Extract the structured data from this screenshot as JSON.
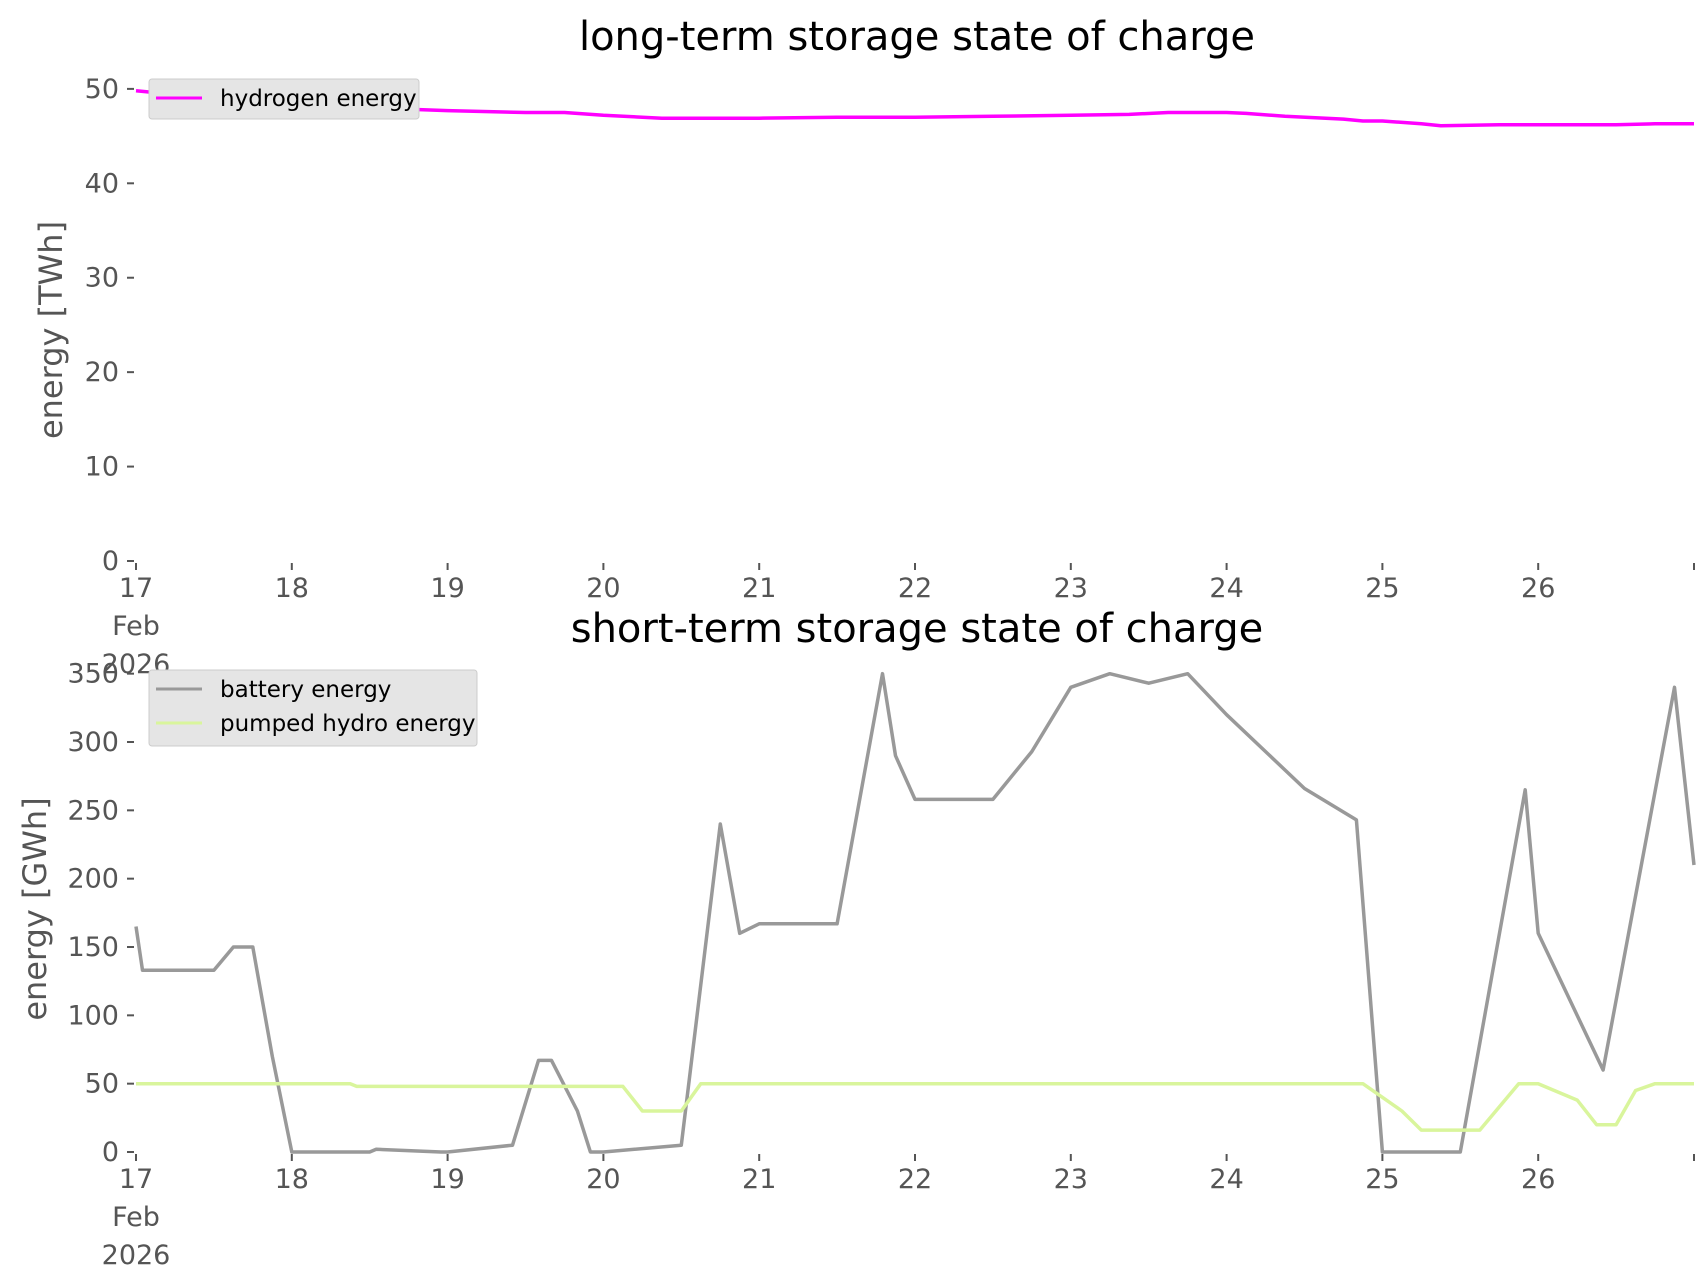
{
  "chart_data": [
    {
      "type": "line",
      "title": "long-term storage state of charge",
      "xlabel": "",
      "ylabel": "energy [TWh]",
      "x_range": [
        "2026-02-17",
        "2026-02-27"
      ],
      "xtick_labels": [
        {
          "day": "17",
          "sub1": "Feb",
          "sub2": "2026"
        },
        {
          "day": "18"
        },
        {
          "day": "19"
        },
        {
          "day": "20"
        },
        {
          "day": "21"
        },
        {
          "day": "22"
        },
        {
          "day": "23"
        },
        {
          "day": "24"
        },
        {
          "day": "25"
        },
        {
          "day": "26"
        }
      ],
      "ylim": [
        0,
        52
      ],
      "yticks": [
        0,
        10,
        20,
        30,
        40,
        50
      ],
      "grid": false,
      "legend_position": "top-left",
      "series": [
        {
          "name": "hydrogen energy",
          "color": "#ff00ff",
          "x": [
            "2026-02-17T00:00",
            "2026-02-17T12:00",
            "2026-02-18T00:00",
            "2026-02-18T12:00",
            "2026-02-19T00:00",
            "2026-02-19T12:00",
            "2026-02-19T18:00",
            "2026-02-20T00:00",
            "2026-02-20T09:00",
            "2026-02-20T12:00",
            "2026-02-21T00:00",
            "2026-02-21T12:00",
            "2026-02-22T00:00",
            "2026-02-22T12:00",
            "2026-02-23T00:00",
            "2026-02-23T09:00",
            "2026-02-23T15:00",
            "2026-02-24T00:00",
            "2026-02-24T03:00",
            "2026-02-24T09:00",
            "2026-02-24T18:00",
            "2026-02-24T21:00",
            "2026-02-25T00:00",
            "2026-02-25T06:00",
            "2026-02-25T09:00",
            "2026-02-25T18:00",
            "2026-02-26T00:00",
            "2026-02-26T12:00",
            "2026-02-26T18:00",
            "2026-02-27T00:00"
          ],
          "y": [
            49.8,
            49.0,
            48.3,
            48.0,
            47.7,
            47.5,
            47.5,
            47.2,
            46.9,
            46.9,
            46.9,
            47.0,
            47.0,
            47.1,
            47.2,
            47.3,
            47.5,
            47.5,
            47.4,
            47.1,
            46.8,
            46.6,
            46.6,
            46.3,
            46.1,
            46.2,
            46.2,
            46.2,
            46.3,
            46.3
          ]
        }
      ]
    },
    {
      "type": "line",
      "title": "short-term storage state of charge",
      "xlabel": "",
      "ylabel": "energy [GWh]",
      "x_range": [
        "2026-02-17",
        "2026-02-27"
      ],
      "xtick_labels": [
        {
          "day": "17",
          "sub1": "Feb",
          "sub2": "2026"
        },
        {
          "day": "18"
        },
        {
          "day": "19"
        },
        {
          "day": "20"
        },
        {
          "day": "21"
        },
        {
          "day": "22"
        },
        {
          "day": "23"
        },
        {
          "day": "24"
        },
        {
          "day": "25"
        },
        {
          "day": "26"
        }
      ],
      "ylim": [
        0,
        360
      ],
      "yticks": [
        0,
        50,
        100,
        150,
        200,
        250,
        300,
        350
      ],
      "grid": false,
      "legend_position": "top-left",
      "series": [
        {
          "name": "battery energy",
          "color": "#999999",
          "x": [
            "2026-02-17T00:00",
            "2026-02-17T01:00",
            "2026-02-17T12:00",
            "2026-02-17T15:00",
            "2026-02-17T18:00",
            "2026-02-17T21:00",
            "2026-02-18T00:00",
            "2026-02-18T12:00",
            "2026-02-18T13:00",
            "2026-02-18T23:00",
            "2026-02-19T00:00",
            "2026-02-19T10:00",
            "2026-02-19T14:00",
            "2026-02-19T16:00",
            "2026-02-19T20:00",
            "2026-02-19T22:00",
            "2026-02-20T00:00",
            "2026-02-20T12:00",
            "2026-02-20T18:00",
            "2026-02-20T21:00",
            "2026-02-21T00:00",
            "2026-02-21T12:00",
            "2026-02-21T19:00",
            "2026-02-21T21:00",
            "2026-02-22T00:00",
            "2026-02-22T12:00",
            "2026-02-22T18:00",
            "2026-02-23T00:00",
            "2026-02-23T06:00",
            "2026-02-23T12:00",
            "2026-02-23T18:00",
            "2026-02-24T00:00",
            "2026-02-24T12:00",
            "2026-02-24T20:00",
            "2026-02-25T00:00",
            "2026-02-25T12:00",
            "2026-02-25T22:00",
            "2026-02-26T00:00",
            "2026-02-26T10:00",
            "2026-02-26T21:00",
            "2026-02-27T00:00"
          ],
          "y": [
            165,
            133,
            133,
            150,
            150,
            70,
            0,
            0,
            2,
            0,
            0,
            5,
            67,
            67,
            30,
            0,
            0,
            5,
            240,
            160,
            167,
            167,
            350,
            290,
            258,
            258,
            293,
            340,
            350,
            343,
            350,
            320,
            266,
            243,
            0,
            0,
            265,
            160,
            60,
            340,
            210
          ]
        },
        {
          "name": "pumped hydro energy",
          "color": "#d9f59c",
          "x": [
            "2026-02-17T00:00",
            "2026-02-18T09:00",
            "2026-02-18T10:00",
            "2026-02-20T03:00",
            "2026-02-20T06:00",
            "2026-02-20T12:00",
            "2026-02-20T15:00",
            "2026-02-24T21:00",
            "2026-02-25T03:00",
            "2026-02-25T06:00",
            "2026-02-25T09:00",
            "2026-02-25T15:00",
            "2026-02-25T21:00",
            "2026-02-26T00:00",
            "2026-02-26T06:00",
            "2026-02-26T09:00",
            "2026-02-26T12:00",
            "2026-02-26T15:00",
            "2026-02-26T18:00",
            "2026-02-27T00:00"
          ],
          "y": [
            50,
            50,
            48,
            48,
            30,
            30,
            50,
            50,
            30,
            16,
            16,
            16,
            50,
            50,
            38,
            20,
            20,
            45,
            50,
            50
          ]
        }
      ]
    }
  ]
}
